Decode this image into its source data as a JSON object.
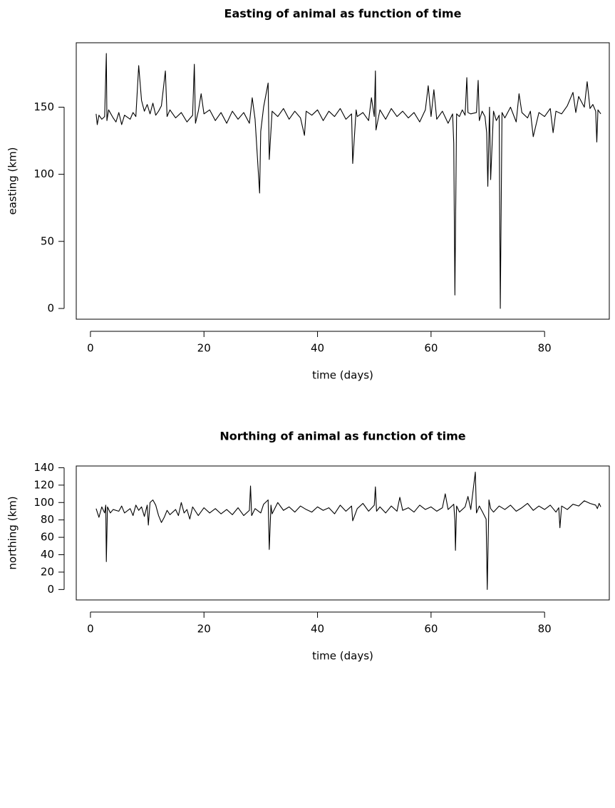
{
  "chart_data": [
    {
      "type": "line",
      "title": "Easting of animal as function of time",
      "x_label": "time (days)",
      "y_label": "easting (km)",
      "color": "#000000",
      "xlim": [
        -2.5,
        91.4
      ],
      "ylim": [
        -8,
        198
      ],
      "xticks": [
        0,
        20,
        40,
        60,
        80
      ],
      "yticks": [
        0,
        50,
        100,
        150
      ],
      "x": [
        1.0,
        1.2,
        1.5,
        2.0,
        2.5,
        2.8,
        2.9,
        3.2,
        4,
        4.5,
        5,
        5.5,
        6,
        7,
        7.5,
        8,
        8.5,
        9,
        9.5,
        10,
        10.5,
        11,
        11.5,
        12,
        12.5,
        13.2,
        13.5,
        14,
        15,
        16,
        17,
        18,
        18.3,
        18.5,
        19,
        19.5,
        20,
        21,
        22,
        23,
        24,
        25,
        26,
        27,
        28,
        28.5,
        29,
        29.8,
        30,
        30.5,
        31.3,
        31.5,
        32,
        33,
        34,
        35,
        36,
        37,
        37.7,
        38,
        39,
        40,
        41,
        42,
        43,
        44,
        45,
        46,
        46.2,
        46.8,
        47,
        48,
        49,
        49.5,
        50,
        50.2,
        50.3,
        51,
        52,
        53,
        54,
        55,
        56,
        57,
        58,
        59,
        59.5,
        60,
        60.5,
        61,
        62,
        63,
        63.8,
        64,
        64.2,
        64.5,
        65,
        65.5,
        66,
        66.3,
        66.5,
        67,
        68,
        68.3,
        68.5,
        69,
        69.5,
        69.8,
        70,
        70.3,
        70.5,
        71,
        71.5,
        72,
        72.2,
        72.5,
        73,
        74,
        75,
        75.5,
        76,
        77,
        77.5,
        78,
        79,
        80,
        81,
        81.5,
        82,
        83,
        84,
        85,
        85.5,
        86,
        87,
        87.5,
        88,
        88.5,
        89,
        89.2,
        89.4,
        89.9
      ],
      "values": [
        145,
        137,
        144,
        141,
        143,
        190,
        140,
        148,
        142,
        139,
        146,
        137,
        144,
        141,
        146,
        143,
        181,
        155,
        147,
        152,
        145,
        153,
        144,
        147,
        151,
        177,
        143,
        148,
        142,
        146,
        139,
        144,
        182,
        138,
        147,
        160,
        145,
        148,
        140,
        146,
        138,
        147,
        141,
        146,
        138,
        157,
        141,
        86,
        132,
        150,
        168,
        111,
        147,
        143,
        149,
        141,
        147,
        142,
        129,
        147,
        144,
        148,
        140,
        147,
        143,
        149,
        141,
        145,
        108,
        148,
        143,
        146,
        140,
        157,
        143,
        177,
        133,
        148,
        141,
        149,
        143,
        147,
        142,
        146,
        139,
        148,
        166,
        143,
        163,
        141,
        147,
        138,
        145,
        123,
        10,
        145,
        143,
        148,
        144,
        172,
        146,
        145,
        146,
        170,
        140,
        147,
        143,
        131,
        91,
        150,
        96,
        147,
        140,
        144,
        0,
        146,
        142,
        150,
        139,
        160,
        146,
        142,
        147,
        128,
        146,
        143,
        149,
        131,
        147,
        145,
        151,
        161,
        146,
        158,
        150,
        169,
        149,
        152,
        147,
        124,
        148,
        145
      ]
    },
    {
      "type": "line",
      "title": "Northing of animal as function of time",
      "x_label": "time (days)",
      "y_label": "northing (km)",
      "color": "#000000",
      "xlim": [
        -2.5,
        91.4
      ],
      "ylim": [
        -12,
        142
      ],
      "xticks": [
        0,
        20,
        40,
        60,
        80
      ],
      "yticks": [
        0,
        20,
        40,
        60,
        80,
        100,
        120,
        140
      ],
      "x": [
        1,
        1.5,
        2,
        2.5,
        2.7,
        2.8,
        3,
        3.5,
        4,
        5,
        5.5,
        6,
        7,
        7.5,
        8,
        8.5,
        9,
        9.5,
        10,
        10.2,
        10.5,
        11,
        11.5,
        12,
        12.5,
        13,
        13.5,
        14,
        15,
        15.5,
        16,
        16.5,
        17,
        17.5,
        18,
        19,
        20,
        21,
        22,
        23,
        24,
        25,
        26,
        27,
        28,
        28.2,
        28.4,
        29,
        30,
        30.5,
        31.3,
        31.5,
        31.8,
        32,
        33,
        34,
        35,
        36,
        37,
        38,
        39,
        40,
        41,
        42,
        43,
        44,
        45,
        46,
        46.2,
        47,
        48,
        49,
        50,
        50.2,
        50.4,
        51,
        52,
        53,
        54,
        54.5,
        55,
        56,
        57,
        58,
        59,
        60,
        61,
        62,
        62.5,
        63,
        64,
        64.2,
        64.3,
        64.5,
        65,
        66,
        66.5,
        67,
        67.8,
        68,
        68.5,
        69,
        69.7,
        69.9,
        70.2,
        70.5,
        71,
        72,
        73,
        74,
        75,
        76,
        77,
        78,
        79,
        80,
        81,
        82,
        82.5,
        82.7,
        83,
        84,
        85,
        86,
        87,
        88,
        89,
        89.3,
        89.6,
        89.9
      ],
      "values": [
        93,
        83,
        95,
        88,
        97,
        32,
        95,
        88,
        92,
        90,
        96,
        88,
        93,
        85,
        97,
        91,
        95,
        84,
        97,
        74,
        100,
        103,
        97,
        85,
        77,
        83,
        91,
        86,
        92,
        85,
        100,
        88,
        92,
        81,
        95,
        85,
        94,
        88,
        93,
        87,
        92,
        86,
        94,
        85,
        91,
        119,
        85,
        93,
        88,
        98,
        103,
        46,
        97,
        87,
        100,
        91,
        95,
        89,
        96,
        92,
        89,
        95,
        91,
        94,
        87,
        97,
        90,
        96,
        79,
        93,
        99,
        90,
        97,
        118,
        90,
        95,
        88,
        96,
        90,
        106,
        91,
        94,
        89,
        97,
        92,
        95,
        90,
        94,
        110,
        92,
        98,
        79,
        45,
        96,
        89,
        95,
        107,
        92,
        135,
        88,
        96,
        90,
        81,
        0,
        103,
        93,
        89,
        96,
        92,
        97,
        90,
        94,
        99,
        91,
        96,
        92,
        97,
        89,
        94,
        71,
        96,
        92,
        98,
        96,
        102,
        99,
        97,
        93,
        99,
        95
      ]
    }
  ]
}
